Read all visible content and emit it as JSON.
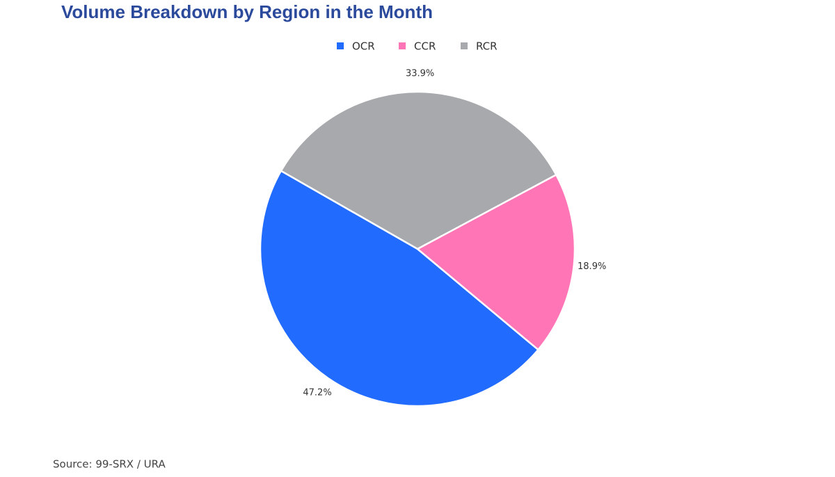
{
  "chart_data": {
    "type": "pie",
    "title": "Volume Breakdown by Region in the Month",
    "categories": [
      "OCR",
      "CCR",
      "RCR"
    ],
    "values": [
      47.2,
      18.9,
      33.9
    ],
    "value_labels": [
      "47.2%",
      "18.9%",
      "33.9%"
    ],
    "colors": [
      "#226bff",
      "#ff75b5",
      "#a8a9ad"
    ],
    "source": "Source: 99-SRX / URA"
  }
}
